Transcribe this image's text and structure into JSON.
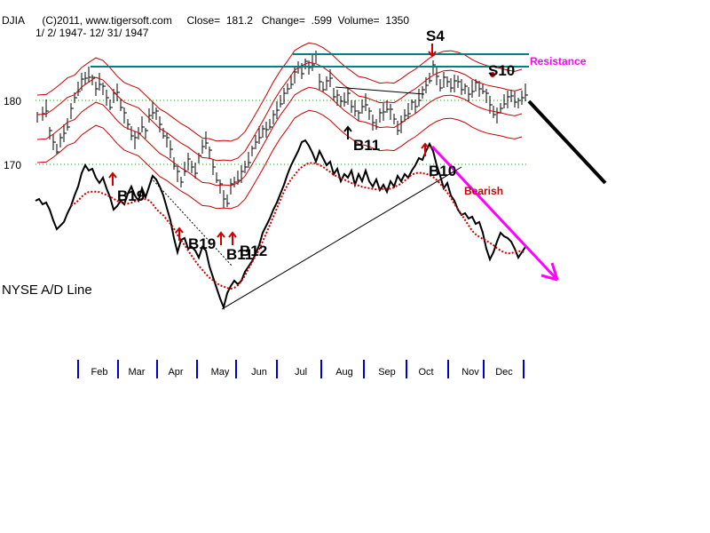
{
  "header": {
    "line1": "DJIA      (C)2011, www.tigersoft.com     Close=  181.2   Change=  .599  Volume=  1350",
    "line2": "1/ 2/ 1947- 12/ 31/ 1947"
  },
  "colors": {
    "price_bars": "#000000",
    "bands": "#cc0000",
    "resistance": "#008080",
    "ad_line": "#000000",
    "ad_ma": "#cc0000",
    "pink_arrow": "#ff00ff",
    "signals_red": "#cc0000"
  },
  "chart_data": {
    "type": "line",
    "title": "DJIA 1/2/1947 - 12/31/1947",
    "ylabel": "",
    "ylim": [
      165,
      188
    ],
    "y_ticks": [
      "180",
      "170"
    ],
    "x_ticks": [
      "Feb",
      "Mar",
      "Apr",
      "May",
      "Jun",
      "Jul",
      "Aug",
      "Sep",
      "Oct",
      "Nov",
      "Dec"
    ],
    "close": 181.2,
    "change": 0.599,
    "volume": 1350,
    "resistance_label": "Resistance",
    "bearish_label": "Bearish",
    "ad_label": "NYSE A/D Line",
    "signals": [
      {
        "label": "S4",
        "color": "#000000"
      },
      {
        "label": "S10",
        "color": "#000000"
      },
      {
        "label": "B11",
        "color": "#000000"
      },
      {
        "label": "B10",
        "color": "#000000"
      },
      {
        "label": "B19",
        "color": "#000000"
      },
      {
        "label": "B19",
        "color": "#000000"
      },
      {
        "label": "B11",
        "color": "#000000"
      },
      {
        "label": "B12",
        "color": "#000000"
      }
    ]
  }
}
